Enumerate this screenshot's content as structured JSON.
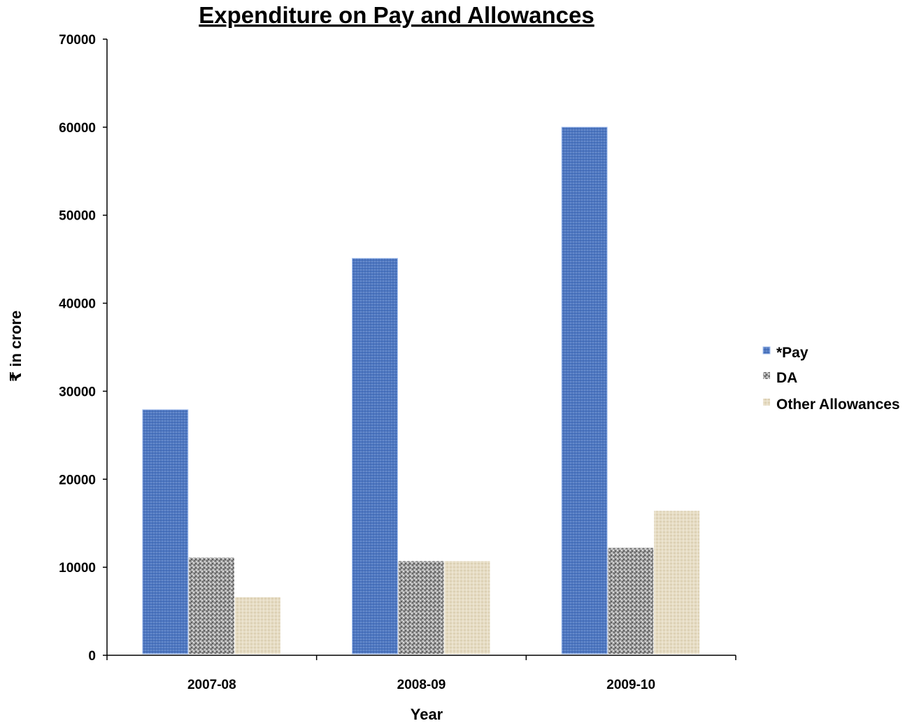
{
  "chart_data": {
    "type": "bar",
    "title": "Expenditure on Pay and Allowances",
    "xlabel": "Year",
    "ylabel": "₹ in crore",
    "categories": [
      "2007-08",
      "2008-09",
      "2009-10"
    ],
    "series": [
      {
        "name": "*Pay",
        "values": [
          27900,
          45100,
          60000
        ],
        "color": "#4f79c4"
      },
      {
        "name": "DA",
        "values": [
          11100,
          10700,
          12200
        ],
        "color": "#9a9a9a"
      },
      {
        "name": "Other Allowances",
        "values": [
          6600,
          10700,
          16400
        ],
        "color": "#e3d7bd"
      }
    ],
    "ylim": [
      0,
      70000
    ],
    "yticks": [
      "0",
      "10000",
      "20000",
      "30000",
      "40000",
      "50000",
      "60000",
      "70000"
    ],
    "grid": false,
    "legend_position": "right"
  }
}
